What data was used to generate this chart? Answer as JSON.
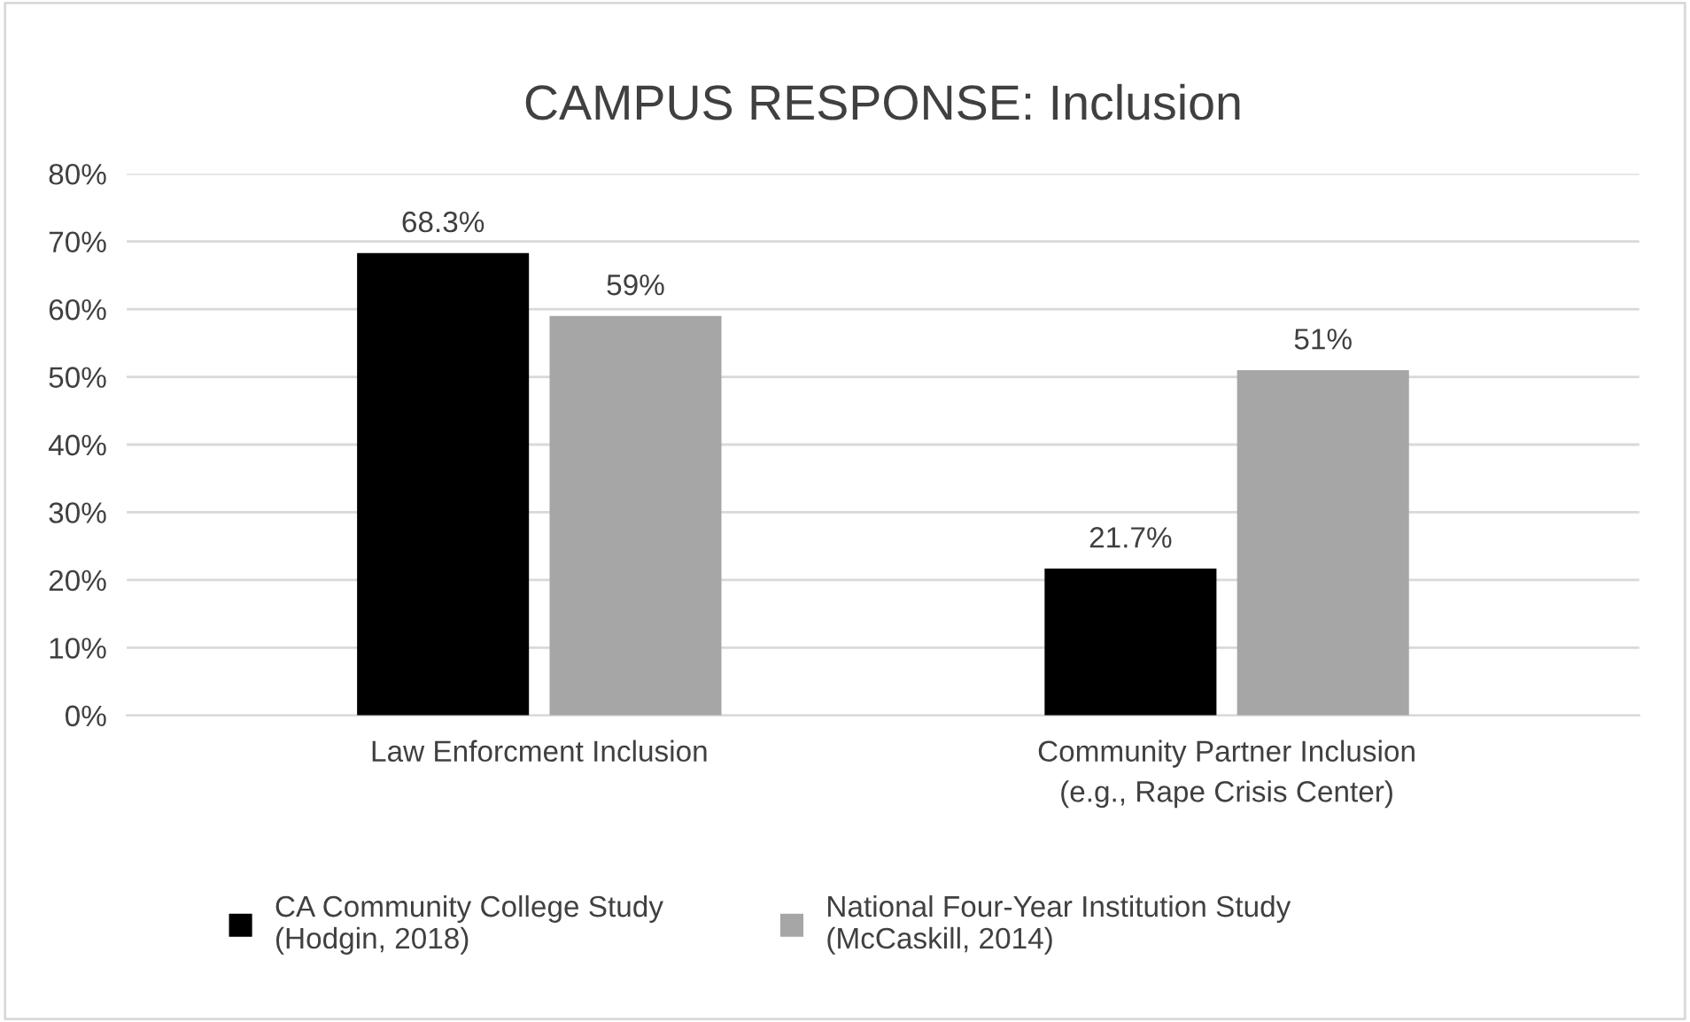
{
  "chart_data": {
    "type": "bar",
    "title": "CAMPUS RESPONSE: Inclusion",
    "categories": [
      "Law Enforcment Inclusion",
      "Community Partner Inclusion\n(e.g., Rape Crisis Center)"
    ],
    "series": [
      {
        "name": "CA Community College Study\n(Hodgin, 2018)",
        "color": "#000000",
        "values": [
          68.3,
          21.7
        ],
        "value_labels": [
          "68.3%",
          "21.7%"
        ]
      },
      {
        "name": "National Four-Year Institution Study\n(McCaskill, 2014)",
        "color": "#a6a6a6",
        "values": [
          59,
          51
        ],
        "value_labels": [
          "59%",
          "51%"
        ]
      }
    ],
    "ylim": [
      0,
      80
    ],
    "yticks": [
      {
        "value": 0,
        "label": "0%"
      },
      {
        "value": 10,
        "label": "10%"
      },
      {
        "value": 20,
        "label": "20%"
      },
      {
        "value": 30,
        "label": "30%"
      },
      {
        "value": 40,
        "label": "40%"
      },
      {
        "value": 50,
        "label": "50%"
      },
      {
        "value": 60,
        "label": "60%"
      },
      {
        "value": 70,
        "label": "70%"
      },
      {
        "value": 80,
        "label": "80%"
      }
    ],
    "grid": "y",
    "legend": "bottom"
  }
}
